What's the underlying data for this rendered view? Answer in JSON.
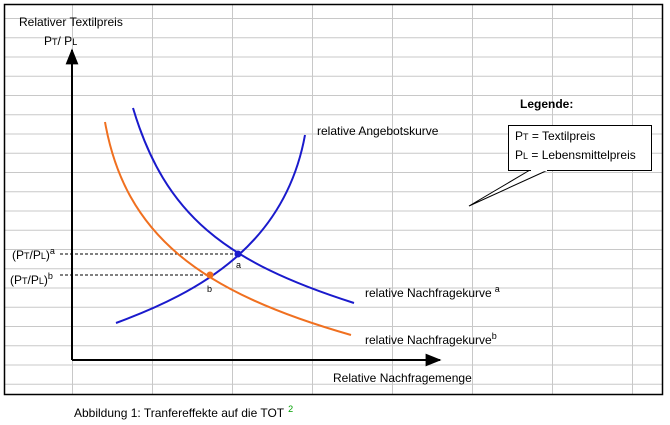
{
  "y_axis": {
    "title": "Relativer Textilpreis",
    "symbol": [
      "P",
      "T",
      "/ P",
      "L"
    ]
  },
  "x_axis": {
    "title": "Relative Nachfragemenge"
  },
  "curves": {
    "supply": "relative Angebotskurve",
    "demand_a": [
      "relative Nachfragekurve",
      "a"
    ],
    "demand_b": [
      "relative Nachfragekurve",
      "b"
    ]
  },
  "levels": {
    "a": [
      "(P",
      "T",
      "/P",
      "L",
      ")",
      "a"
    ],
    "b": [
      "(P",
      "T",
      "/P",
      "L",
      ")",
      "b"
    ]
  },
  "points": [
    "a",
    "b"
  ],
  "legend": {
    "title": "Legende:",
    "items": [
      [
        "P",
        "T",
        " = Textilpreis"
      ],
      [
        "P",
        "L",
        " = Lebensmittelpreis"
      ]
    ]
  },
  "caption": {
    "text": "Abbildung 1: Tranfereffekte auf die TOT",
    "note": "2"
  }
}
